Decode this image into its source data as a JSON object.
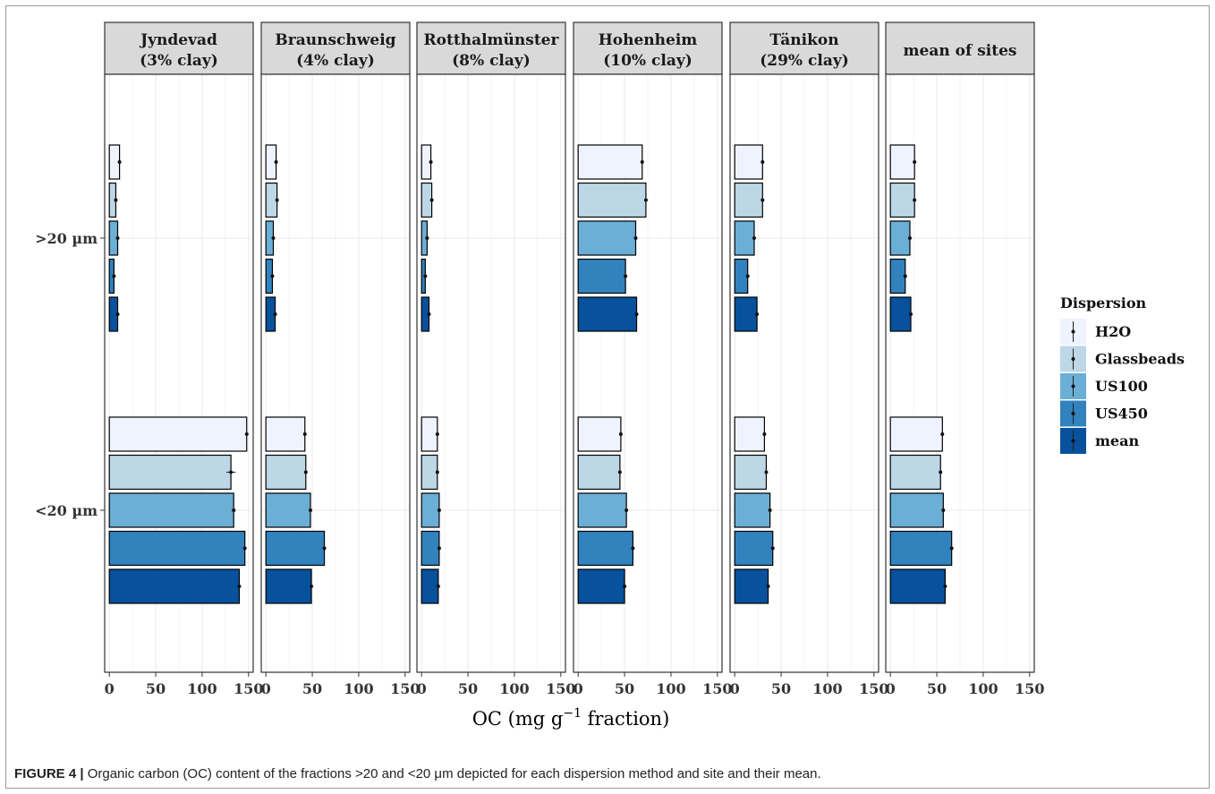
{
  "chart_data": {
    "type": "bar",
    "orientation": "horizontal",
    "facets": [
      {
        "name": "Jyndevad",
        "subtitle": "(3% clay)"
      },
      {
        "name": "Braunschweig",
        "subtitle": "(4% clay)"
      },
      {
        "name": "Rotthalmünster",
        "subtitle": "(8% clay)"
      },
      {
        "name": "Hohenheim",
        "subtitle": "(10% clay)"
      },
      {
        "name": "Tänikon",
        "subtitle": "(29% clay)"
      },
      {
        "name": "mean of sites",
        "subtitle": ""
      }
    ],
    "categories": [
      ">20 µm",
      "<20 µm"
    ],
    "series": [
      {
        "name": "H2O",
        "color": "#eff3ff"
      },
      {
        "name": "Glassbeads",
        "color": "#bdd7e7"
      },
      {
        "name": "US100",
        "color": "#6baed6"
      },
      {
        "name": "US450",
        "color": "#3182bd"
      },
      {
        "name": "mean",
        "color": "#08519c"
      }
    ],
    "values": [
      [
        [
          11,
          7,
          9,
          5,
          9
        ],
        [
          148,
          131,
          134,
          146,
          140
        ]
      ],
      [
        [
          11,
          12,
          8,
          7,
          10
        ],
        [
          42,
          43,
          48,
          63,
          49
        ]
      ],
      [
        [
          10,
          11,
          6,
          4,
          8
        ],
        [
          17,
          17,
          19,
          19,
          18
        ]
      ],
      [
        [
          69,
          73,
          62,
          51,
          63
        ],
        [
          46,
          45,
          52,
          59,
          50
        ]
      ],
      [
        [
          30,
          30,
          21,
          14,
          24
        ],
        [
          32,
          34,
          38,
          41,
          36
        ]
      ],
      [
        [
          26,
          26,
          21,
          16,
          22
        ],
        [
          56,
          54,
          57,
          66,
          59
        ]
      ]
    ],
    "error_bars": [
      [
        [
          1,
          1,
          1,
          1,
          1
        ],
        [
          1,
          5,
          2,
          1,
          1
        ]
      ],
      [
        [
          1,
          1,
          1,
          1,
          1
        ],
        [
          1,
          1,
          1,
          1,
          1
        ]
      ],
      [
        [
          1,
          1,
          1,
          1,
          1
        ],
        [
          1,
          1,
          1,
          1,
          1
        ]
      ],
      [
        [
          1,
          1,
          1,
          1,
          1
        ],
        [
          1,
          1,
          1,
          1,
          1
        ]
      ],
      [
        [
          1,
          1,
          1,
          1,
          1
        ],
        [
          1,
          1,
          1,
          1,
          1
        ]
      ],
      [
        [
          1,
          1,
          1,
          1,
          1
        ],
        [
          1,
          1,
          1,
          1,
          1
        ]
      ]
    ],
    "xlim": [
      -5,
      155
    ],
    "x_ticks": [
      "0",
      "50",
      "100",
      "150"
    ],
    "xlabel": "OC (mg g",
    "xlabel_sup": "−1",
    "xlabel_suffix": " fraction)",
    "legend_title": "Dispersion",
    "legend_position": "right",
    "grid": true
  },
  "caption": {
    "label": "FIGURE 4 |",
    "text": " Organic carbon (OC) content of the fractions >20 and <20 μm depicted for each dispersion method and site and their mean."
  }
}
